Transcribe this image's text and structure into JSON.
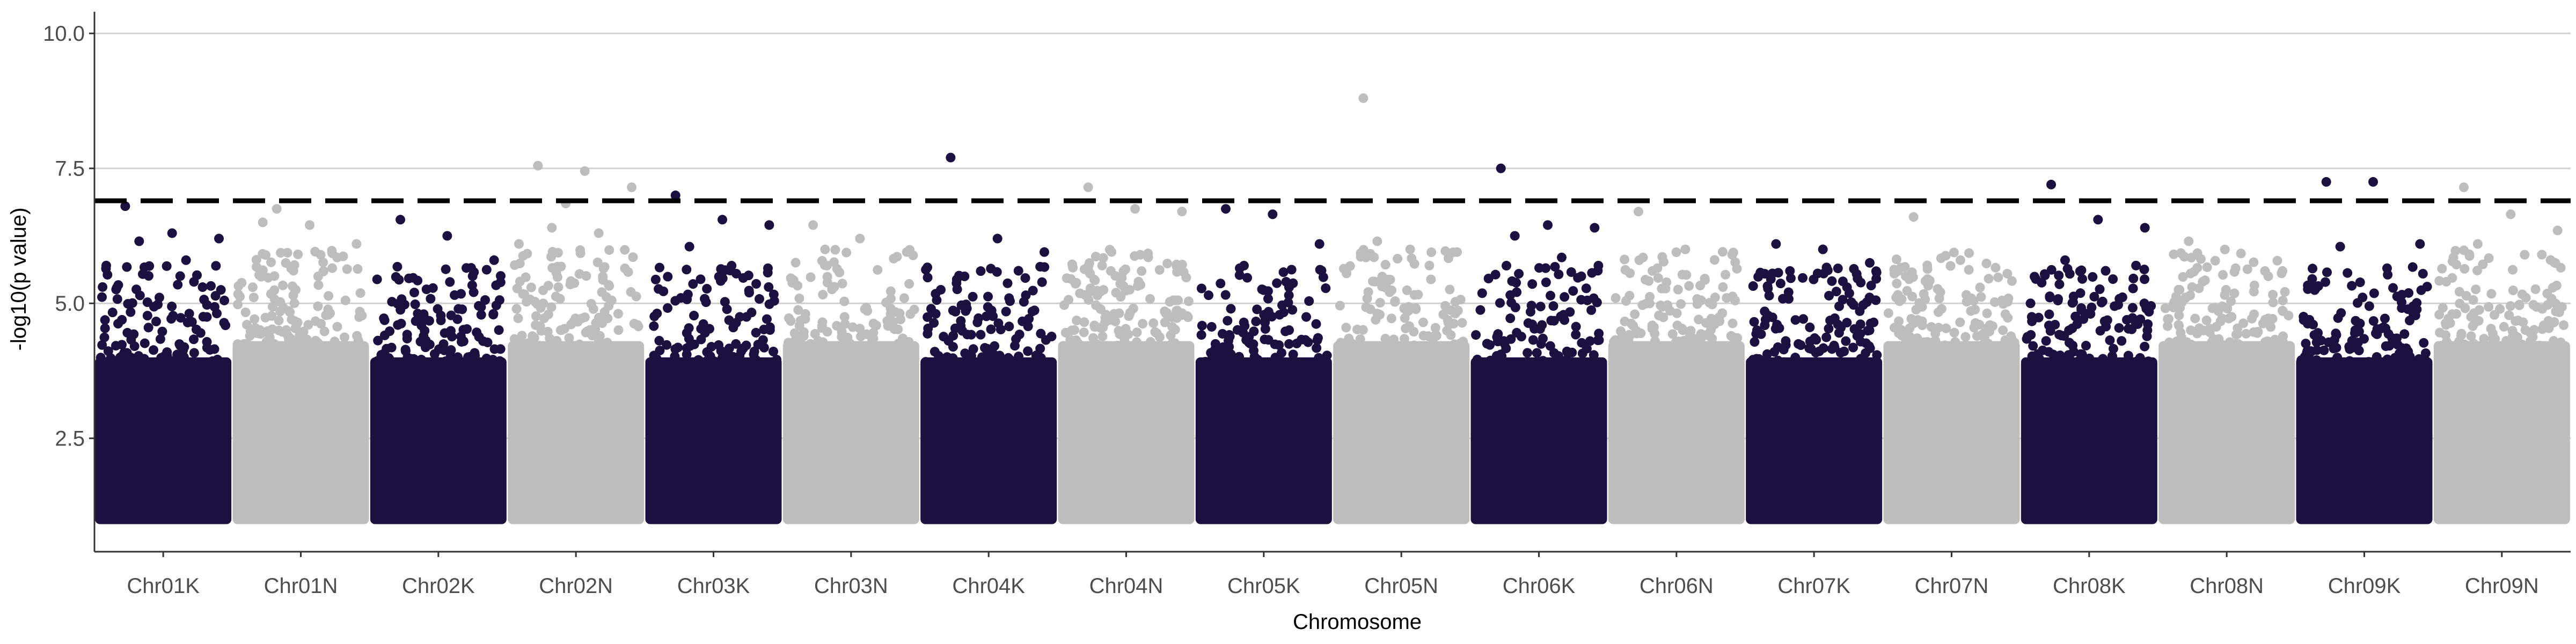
{
  "chart_data": {
    "type": "scatter",
    "title": "",
    "xlabel": "Chromosome",
    "ylabel": "-log10(p value)",
    "categories": [
      "Chr01K",
      "Chr01N",
      "Chr02K",
      "Chr02N",
      "Chr03K",
      "Chr03N",
      "Chr04K",
      "Chr04N",
      "Chr05K",
      "Chr05N",
      "Chr06K",
      "Chr06N",
      "Chr07K",
      "Chr07N",
      "Chr08K",
      "Chr08N",
      "Chr09K",
      "Chr09N"
    ],
    "ylim": [
      0.4,
      10.4
    ],
    "yticks": [
      2.5,
      5.0,
      7.5,
      10.0
    ],
    "ytick_labels": [
      "2.5",
      "5.0",
      "7.5",
      "10.0"
    ],
    "threshold": 6.9,
    "grid": true,
    "legend": "none",
    "colors": {
      "odd": "#1c1040",
      "even": "#bdbdbd",
      "threshold": "#000000",
      "grid": "#d0d0d0"
    },
    "min_p": 1.0,
    "series": [
      {
        "category": "Chr01K",
        "peaks": [
          6.8,
          6.3,
          6.2,
          6.15,
          5.8,
          5.7
        ]
      },
      {
        "category": "Chr01N",
        "peaks": [
          6.5,
          6.45,
          6.1,
          6.75,
          5.6
        ]
      },
      {
        "category": "Chr02K",
        "peaks": [
          6.55,
          6.25,
          5.8,
          5.2
        ]
      },
      {
        "category": "Chr02N",
        "peaks": [
          7.55,
          7.45,
          7.15,
          6.4,
          6.3,
          6.1,
          6.85
        ]
      },
      {
        "category": "Chr03K",
        "peaks": [
          7.0,
          6.55,
          6.45,
          6.05,
          5.55
        ]
      },
      {
        "category": "Chr03N",
        "peaks": [
          6.45,
          6.2,
          5.95,
          5.7
        ]
      },
      {
        "category": "Chr04K",
        "peaks": [
          7.7,
          6.2,
          5.95,
          5.5
        ]
      },
      {
        "category": "Chr04N",
        "peaks": [
          7.15,
          6.75,
          6.7,
          5.7
        ]
      },
      {
        "category": "Chr05K",
        "peaks": [
          6.75,
          6.65,
          6.1,
          5.65
        ]
      },
      {
        "category": "Chr05N",
        "peaks": [
          8.8,
          6.0,
          5.95,
          6.15
        ]
      },
      {
        "category": "Chr06K",
        "peaks": [
          7.5,
          6.45,
          6.4,
          6.25,
          5.85
        ]
      },
      {
        "category": "Chr06N",
        "peaks": [
          6.7,
          6.0,
          5.9,
          5.6
        ]
      },
      {
        "category": "Chr07K",
        "peaks": [
          6.1,
          6.0,
          5.75,
          5.6
        ]
      },
      {
        "category": "Chr07N",
        "peaks": [
          6.6,
          5.8,
          5.55,
          5.45
        ]
      },
      {
        "category": "Chr08K",
        "peaks": [
          7.2,
          6.55,
          6.4,
          5.8
        ]
      },
      {
        "category": "Chr08N",
        "peaks": [
          6.15,
          5.65,
          5.6,
          5.4
        ]
      },
      {
        "category": "Chr09K",
        "peaks": [
          7.25,
          7.25,
          6.1,
          6.05,
          5.65
        ]
      },
      {
        "category": "Chr09N",
        "peaks": [
          7.15,
          6.65,
          6.35,
          6.1,
          5.9
        ]
      }
    ]
  }
}
